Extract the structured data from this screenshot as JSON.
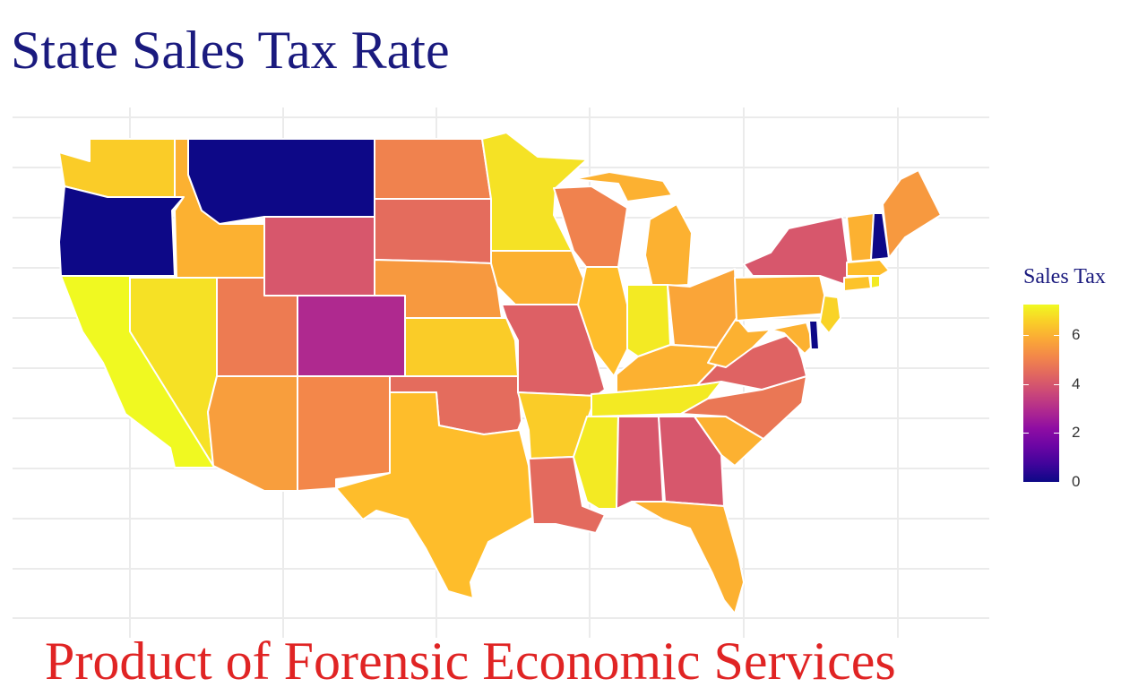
{
  "title": "State Sales Tax Rate",
  "footer": "Product of Forensic Economic Services",
  "legend": {
    "title": "Sales Tax",
    "ticks": [
      "6",
      "4",
      "2",
      "0"
    ],
    "tick_values": [
      6,
      4,
      2,
      0
    ],
    "range": [
      0,
      7.25
    ],
    "palette": "plasma"
  },
  "colors": {
    "title": "#1a1a7e",
    "footer": "#e02424",
    "grid": "#ebebeb",
    "border": "#ffffff"
  },
  "states": [
    {
      "name": "Washington",
      "tax": 6.5
    },
    {
      "name": "Oregon",
      "tax": 0
    },
    {
      "name": "California",
      "tax": 7.25
    },
    {
      "name": "Idaho",
      "tax": 6
    },
    {
      "name": "Nevada",
      "tax": 6.85
    },
    {
      "name": "Montana",
      "tax": 0
    },
    {
      "name": "Wyoming",
      "tax": 4
    },
    {
      "name": "Utah",
      "tax": 4.85
    },
    {
      "name": "Arizona",
      "tax": 5.6
    },
    {
      "name": "Colorado",
      "tax": 2.9
    },
    {
      "name": "New Mexico",
      "tax": 5.125
    },
    {
      "name": "North Dakota",
      "tax": 5
    },
    {
      "name": "South Dakota",
      "tax": 4.5
    },
    {
      "name": "Nebraska",
      "tax": 5.5
    },
    {
      "name": "Kansas",
      "tax": 6.5
    },
    {
      "name": "Oklahoma",
      "tax": 4.5
    },
    {
      "name": "Texas",
      "tax": 6.25
    },
    {
      "name": "Minnesota",
      "tax": 6.875
    },
    {
      "name": "Iowa",
      "tax": 6
    },
    {
      "name": "Missouri",
      "tax": 4.225
    },
    {
      "name": "Arkansas",
      "tax": 6.5
    },
    {
      "name": "Louisiana",
      "tax": 4.45
    },
    {
      "name": "Wisconsin",
      "tax": 5
    },
    {
      "name": "Illinois",
      "tax": 6.25
    },
    {
      "name": "Michigan",
      "tax": 6
    },
    {
      "name": "Indiana",
      "tax": 7
    },
    {
      "name": "Ohio",
      "tax": 5.75
    },
    {
      "name": "Kentucky",
      "tax": 6
    },
    {
      "name": "Tennessee",
      "tax": 7
    },
    {
      "name": "Mississippi",
      "tax": 7
    },
    {
      "name": "Alabama",
      "tax": 4
    },
    {
      "name": "Georgia",
      "tax": 4
    },
    {
      "name": "Florida",
      "tax": 6
    },
    {
      "name": "South Carolina",
      "tax": 6
    },
    {
      "name": "North Carolina",
      "tax": 4.75
    },
    {
      "name": "Virginia",
      "tax": 4.3
    },
    {
      "name": "West Virginia",
      "tax": 6
    },
    {
      "name": "Pennsylvania",
      "tax": 6
    },
    {
      "name": "New York",
      "tax": 4
    },
    {
      "name": "Maryland",
      "tax": 6
    },
    {
      "name": "Delaware",
      "tax": 0
    },
    {
      "name": "New Jersey",
      "tax": 6.625
    },
    {
      "name": "Connecticut",
      "tax": 6.35
    },
    {
      "name": "Rhode Island",
      "tax": 7
    },
    {
      "name": "Massachusetts",
      "tax": 6.25
    },
    {
      "name": "Vermont",
      "tax": 6
    },
    {
      "name": "New Hampshire",
      "tax": 0
    },
    {
      "name": "Maine",
      "tax": 5.5
    }
  ]
}
